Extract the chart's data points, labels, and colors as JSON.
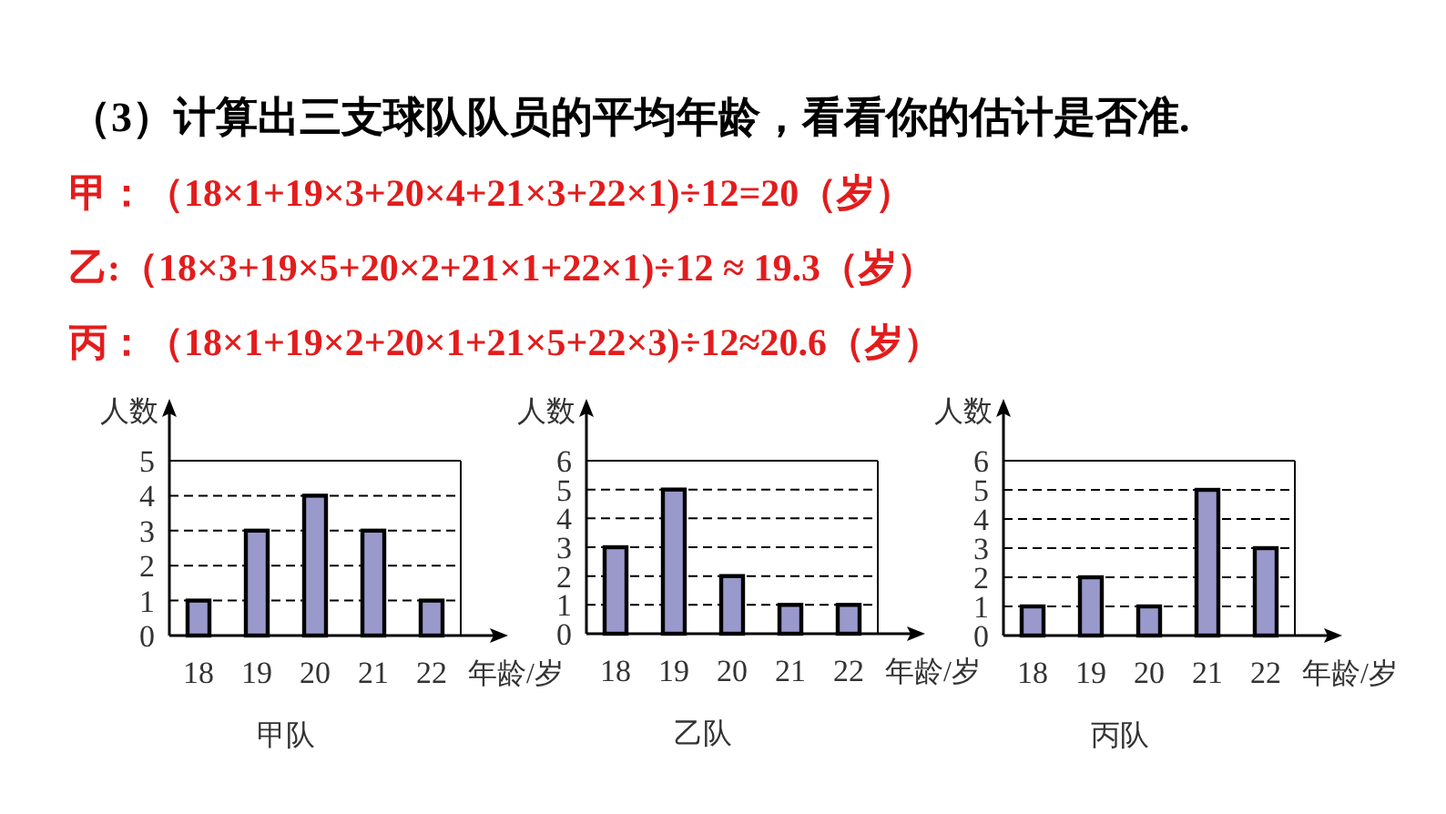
{
  "chart_data": [
    {
      "type": "other",
      "title": "（3）计算出三支球队队员的平均年龄，看看你的估计是否准.",
      "annotations": [
        "甲：（18×1+19×3+20×4+21×3+22×1)÷12=20（岁）",
        "乙:（18×3+19×5+20×2+21×1+22×1)÷12 ≈ 19.3（岁）",
        "丙：（18×1+19×2+20×1+21×5+22×3)÷12≈20.6（岁）"
      ]
    },
    {
      "type": "bar",
      "title": "甲队",
      "xlabel": "年龄/岁",
      "ylabel": "人数",
      "categories": [
        "18",
        "19",
        "20",
        "21",
        "22"
      ],
      "values": [
        1,
        3,
        4,
        3,
        1
      ],
      "color": "#9999cc",
      "ylim": [
        0,
        5
      ],
      "yticks": [
        0,
        1,
        2,
        3,
        4,
        5
      ],
      "grid": "y"
    },
    {
      "type": "bar",
      "title": "乙队",
      "xlabel": "年龄/岁",
      "ylabel": "人数",
      "categories": [
        "18",
        "19",
        "20",
        "21",
        "22"
      ],
      "values": [
        3,
        5,
        2,
        1,
        1
      ],
      "color": "#9999cc",
      "ylim": [
        0,
        6
      ],
      "yticks": [
        0,
        1,
        2,
        3,
        4,
        5,
        6
      ],
      "grid": "y"
    },
    {
      "type": "bar",
      "title": "丙队",
      "xlabel": "年龄/岁",
      "ylabel": "人数",
      "categories": [
        "18",
        "19",
        "20",
        "21",
        "22"
      ],
      "values": [
        1,
        2,
        1,
        5,
        3
      ],
      "color": "#9999cc",
      "ylim": [
        0,
        6
      ],
      "yticks": [
        0,
        1,
        2,
        3,
        4,
        5,
        6
      ],
      "grid": "y"
    }
  ]
}
